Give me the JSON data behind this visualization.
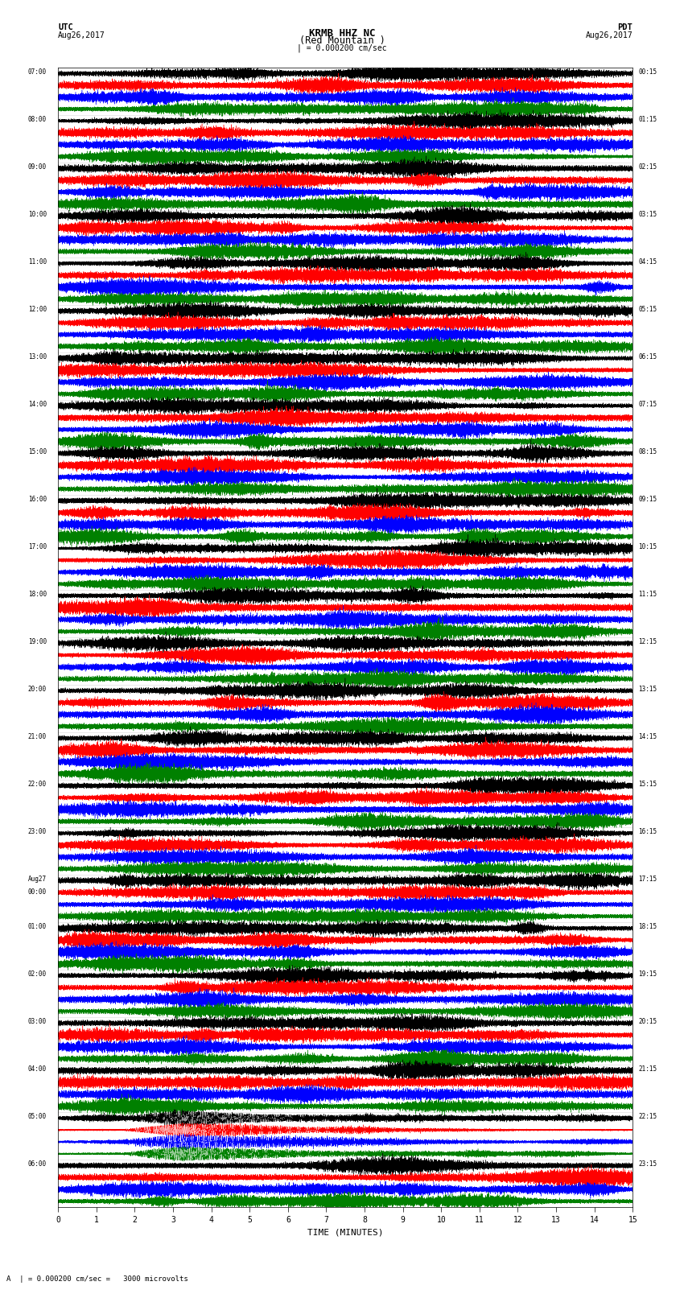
{
  "title_line1": "KRMB HHZ NC",
  "title_line2": "(Red Mountain )",
  "scale_bar": "| = 0.000200 cm/sec",
  "left_label_top": "UTC",
  "left_label_date": "Aug26,2017",
  "right_label_top": "PDT",
  "right_label_date": "Aug26,2017",
  "xlabel": "TIME (MINUTES)",
  "bottom_note": "A  | = 0.000200 cm/sec =   3000 microvolts",
  "utc_times": [
    "07:00",
    "08:00",
    "09:00",
    "10:00",
    "11:00",
    "12:00",
    "13:00",
    "14:00",
    "15:00",
    "16:00",
    "17:00",
    "18:00",
    "19:00",
    "20:00",
    "21:00",
    "22:00",
    "23:00",
    "Aug27\n00:00",
    "01:00",
    "02:00",
    "03:00",
    "04:00",
    "05:00",
    "06:00"
  ],
  "pdt_times": [
    "00:15",
    "01:15",
    "02:15",
    "03:15",
    "04:15",
    "05:15",
    "06:15",
    "07:15",
    "08:15",
    "09:15",
    "10:15",
    "11:15",
    "12:15",
    "13:15",
    "14:15",
    "15:15",
    "16:15",
    "17:15",
    "18:15",
    "19:15",
    "20:15",
    "21:15",
    "22:15",
    "23:15"
  ],
  "colors": [
    "black",
    "red",
    "blue",
    "green"
  ],
  "n_rows": 24,
  "traces_per_row": 4,
  "minutes": 15,
  "sample_rate": 40,
  "fig_width": 8.5,
  "fig_height": 16.13,
  "background_color": "white",
  "amp_scale": [
    1.0,
    0.85,
    0.75,
    0.6
  ],
  "earthquake_row": 22,
  "aug27_row": 17
}
